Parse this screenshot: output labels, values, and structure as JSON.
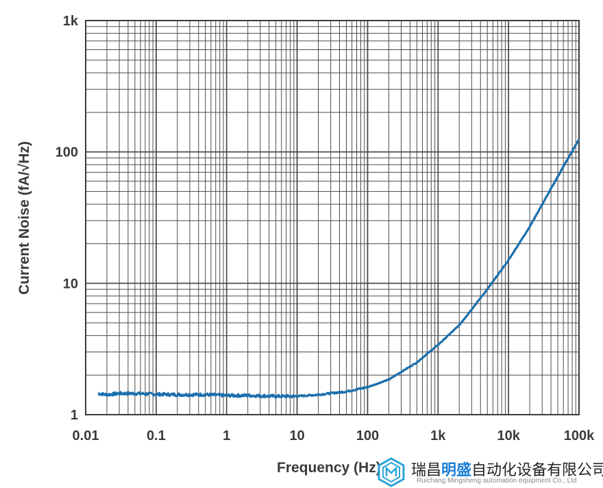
{
  "chart_data": {
    "type": "line",
    "xlabel": "Frequency (Hz)",
    "ylabel": "Current Noise (fA/√Hz)",
    "xscale": "log",
    "yscale": "log",
    "xlim": [
      0.01,
      100000
    ],
    "ylim": [
      1,
      1000
    ],
    "grid": true,
    "x_tick_labels": [
      "0.01",
      "0.1",
      "1",
      "10",
      "100",
      "1k",
      "10k",
      "100k"
    ],
    "y_tick_labels": [
      "1",
      "10",
      "100",
      "1k"
    ],
    "series": [
      {
        "color": "#1a6fad",
        "x": [
          0.015,
          0.02,
          0.03,
          0.05,
          0.1,
          0.2,
          0.5,
          1,
          2,
          5,
          10,
          20,
          50,
          100,
          200,
          500,
          1000,
          2000,
          5000,
          10000,
          20000,
          50000,
          100000
        ],
        "y": [
          1.45,
          1.42,
          1.45,
          1.45,
          1.43,
          1.42,
          1.42,
          1.4,
          1.4,
          1.38,
          1.38,
          1.42,
          1.5,
          1.62,
          1.85,
          2.5,
          3.4,
          4.8,
          9.0,
          15.0,
          27.0,
          65.0,
          125.0
        ]
      }
    ]
  },
  "watermark": {
    "company_cn_prefix": "瑞昌",
    "company_cn_highlight": "明盛",
    "company_cn_suffix": "自动化设备有限公司",
    "company_en": "Ruichang Mingsheng automation equipment Co., Ltd"
  }
}
